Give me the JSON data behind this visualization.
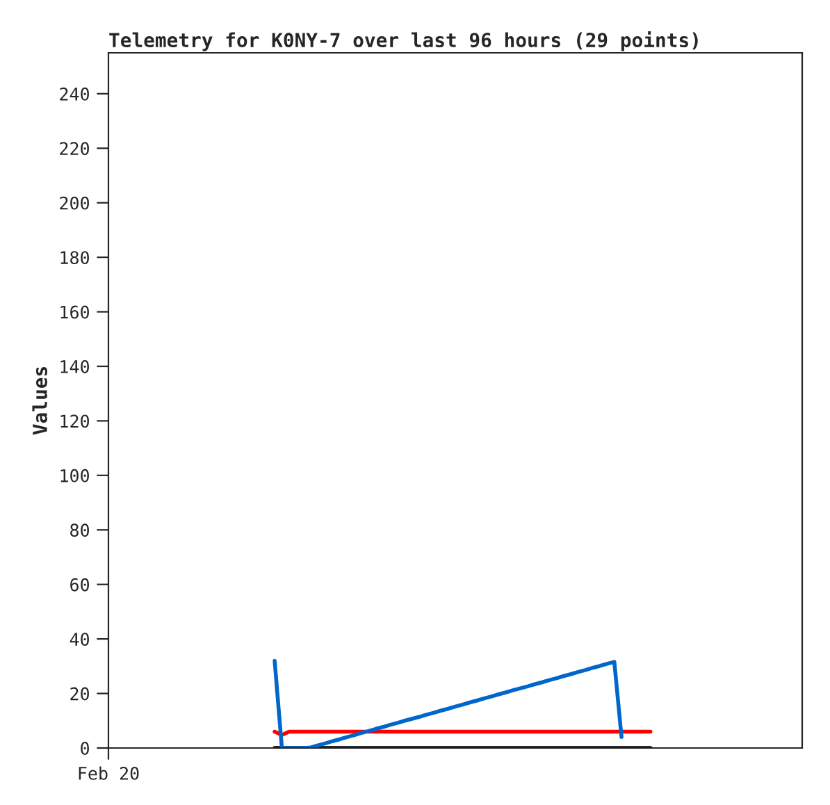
{
  "chart_data": {
    "type": "line",
    "title": "Telemetry for K0NY-7 over last 96 hours (29 points)",
    "ylabel": "Values",
    "categories": [
      "Feb 20",
      null,
      null,
      null,
      null,
      null,
      null,
      null,
      null,
      null,
      null,
      null,
      null,
      null,
      null,
      null,
      null,
      null,
      null,
      null,
      null,
      null,
      null,
      null,
      null,
      null,
      null,
      null,
      null,
      null,
      null,
      null,
      null,
      null,
      null,
      null,
      null,
      null,
      null,
      null,
      null,
      null,
      null,
      null,
      null,
      null,
      null,
      null,
      null,
      null,
      null,
      null,
      null,
      null,
      null,
      null,
      null,
      null,
      null,
      null,
      null,
      null,
      null,
      null,
      null,
      null,
      null,
      null,
      null,
      null,
      null,
      null,
      null,
      null,
      null,
      null,
      null,
      null,
      null,
      null,
      null,
      null,
      null,
      null,
      null,
      null,
      null,
      null,
      null,
      null,
      null,
      null,
      null,
      null,
      null,
      null,
      null
    ],
    "ylim": [
      0,
      255
    ],
    "yticks": [
      0,
      20,
      40,
      60,
      80,
      100,
      120,
      140,
      160,
      180,
      200,
      220,
      240
    ],
    "grid": false,
    "legend": false,
    "marker": "none",
    "line_style": "solid",
    "series": [
      {
        "color": "#000000",
        "values": [
          null,
          null,
          null,
          null,
          null,
          null,
          null,
          null,
          null,
          null,
          null,
          null,
          null,
          null,
          null,
          null,
          null,
          null,
          null,
          null,
          null,
          null,
          null,
          0,
          0,
          0,
          0,
          0,
          0,
          0,
          0,
          0,
          0,
          0,
          0,
          0,
          0,
          0,
          0,
          0,
          0,
          0,
          0,
          0,
          0,
          0,
          0,
          0,
          0,
          0,
          0,
          0,
          0,
          0,
          0,
          0,
          0,
          0,
          0,
          0,
          0,
          0,
          0,
          0,
          0,
          0,
          0,
          0,
          0,
          0,
          0,
          0,
          0,
          0,
          0,
          0,
          null,
          null,
          null,
          null,
          null,
          null,
          null,
          null,
          null,
          null,
          null,
          null,
          null,
          null,
          null,
          null,
          null,
          null,
          null,
          null,
          null
        ]
      },
      {
        "color": "#ff0000",
        "values": [
          null,
          null,
          null,
          null,
          null,
          null,
          null,
          null,
          null,
          null,
          null,
          null,
          null,
          null,
          null,
          null,
          null,
          null,
          null,
          null,
          null,
          null,
          null,
          6,
          4.8,
          6,
          6,
          6,
          6,
          6,
          6,
          6,
          6,
          6,
          6,
          6,
          6,
          6,
          6,
          6,
          6,
          6,
          6,
          6,
          6,
          6,
          6,
          6,
          6,
          6,
          6,
          6,
          6,
          6,
          6,
          6,
          6,
          6,
          6,
          6,
          6,
          6,
          6,
          6,
          6,
          6,
          6,
          6,
          6,
          6,
          6,
          6,
          6,
          6,
          6,
          6,
          null,
          null,
          null,
          null,
          null,
          null,
          null,
          null,
          null,
          null,
          null,
          null,
          null,
          null,
          null,
          null,
          null,
          null,
          null,
          null,
          null
        ]
      },
      {
        "color": "#0066cc",
        "values": [
          null,
          null,
          null,
          null,
          null,
          null,
          null,
          null,
          null,
          null,
          null,
          null,
          null,
          null,
          null,
          null,
          null,
          null,
          null,
          null,
          null,
          null,
          null,
          32,
          0,
          0,
          0,
          0,
          0.2,
          1.0,
          1.7,
          2.5,
          3.2,
          4.0,
          4.7,
          5.5,
          6.2,
          7.0,
          7.7,
          8.5,
          9.2,
          10.0,
          10.7,
          11.4,
          12.2,
          12.9,
          13.7,
          14.4,
          15.2,
          15.9,
          16.7,
          17.4,
          18.2,
          18.9,
          19.7,
          20.4,
          21.2,
          21.9,
          22.6,
          23.4,
          24.1,
          24.9,
          25.6,
          26.4,
          27.1,
          27.9,
          28.6,
          29.4,
          30.1,
          30.9,
          31.6,
          4,
          null,
          null,
          null,
          null,
          null,
          null,
          null,
          null,
          null,
          null,
          null,
          null,
          null,
          null,
          null,
          null,
          null,
          null,
          null,
          null,
          null,
          null,
          null,
          null,
          null
        ]
      }
    ]
  }
}
